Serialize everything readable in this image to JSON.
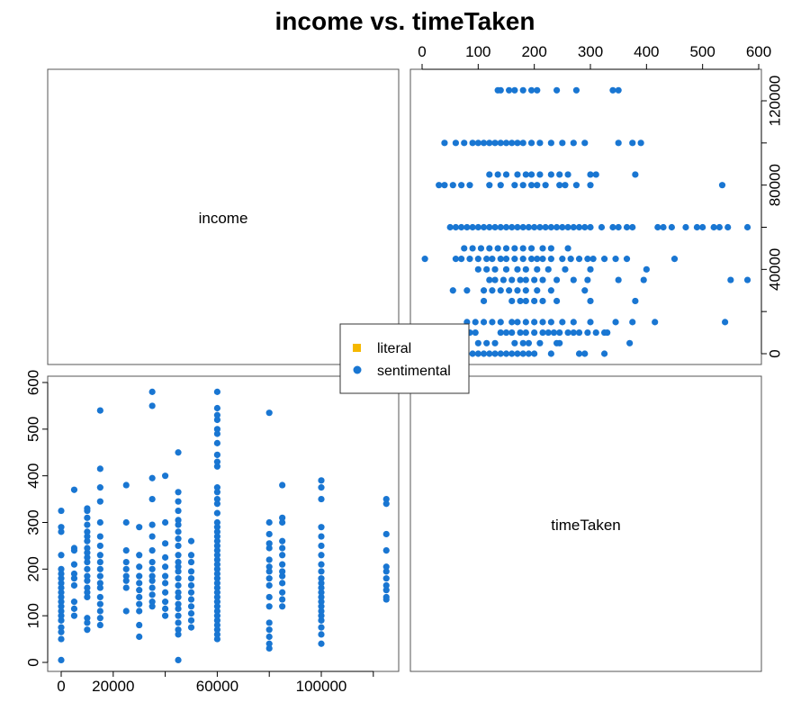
{
  "chart_data": {
    "type": "scatter",
    "title": "income vs. timeTaken",
    "variables": [
      "income",
      "timeTaken"
    ],
    "legend": {
      "placement": "center",
      "entries": [
        {
          "label": "literal",
          "color": "#F5B800",
          "shape": "square"
        },
        {
          "label": "sentimental",
          "color": "#1976D2",
          "shape": "circle"
        }
      ]
    },
    "income_axis": {
      "ticks": [
        0,
        20000,
        60000,
        100000
      ],
      "tick_labels": [
        "0",
        "20000",
        "60000",
        "100000"
      ],
      "range": [
        -2000,
        128000
      ]
    },
    "timeTaken_axis": {
      "ticks": [
        0,
        100,
        200,
        300,
        400,
        500,
        600
      ],
      "tick_labels": [
        "0",
        "100",
        "200",
        "300",
        "400",
        "500",
        "600"
      ],
      "range": [
        0,
        600
      ]
    },
    "income_ticks_right": {
      "ticks": [
        0,
        40000,
        80000,
        120000
      ],
      "tick_labels": [
        "0",
        "40000",
        "80000",
        "120000"
      ]
    },
    "timeTaken_ticks_left": {
      "ticks": [
        0,
        100,
        200,
        300,
        400,
        500,
        600
      ],
      "tick_labels": [
        "0",
        "100",
        "200",
        "300",
        "400",
        "500",
        "600"
      ]
    },
    "series": [
      {
        "name": "literal",
        "points": []
      },
      {
        "name": "sentimental",
        "points": [
          [
            0,
            5
          ],
          [
            0,
            50
          ],
          [
            0,
            65
          ],
          [
            0,
            75
          ],
          [
            0,
            90
          ],
          [
            0,
            100
          ],
          [
            0,
            110
          ],
          [
            0,
            120
          ],
          [
            0,
            130
          ],
          [
            0,
            140
          ],
          [
            0,
            150
          ],
          [
            0,
            160
          ],
          [
            0,
            170
          ],
          [
            0,
            180
          ],
          [
            0,
            190
          ],
          [
            0,
            200
          ],
          [
            0,
            230
          ],
          [
            0,
            280
          ],
          [
            0,
            290
          ],
          [
            0,
            325
          ],
          [
            5000,
            100
          ],
          [
            5000,
            115
          ],
          [
            5000,
            130
          ],
          [
            5000,
            165
          ],
          [
            5000,
            180
          ],
          [
            5000,
            190
          ],
          [
            5000,
            210
          ],
          [
            5000,
            240
          ],
          [
            5000,
            245
          ],
          [
            5000,
            370
          ],
          [
            10000,
            70
          ],
          [
            10000,
            85
          ],
          [
            10000,
            95
          ],
          [
            10000,
            140
          ],
          [
            10000,
            150
          ],
          [
            10000,
            160
          ],
          [
            10000,
            175
          ],
          [
            10000,
            185
          ],
          [
            10000,
            200
          ],
          [
            10000,
            215
          ],
          [
            10000,
            225
          ],
          [
            10000,
            235
          ],
          [
            10000,
            245
          ],
          [
            10000,
            260
          ],
          [
            10000,
            270
          ],
          [
            10000,
            280
          ],
          [
            10000,
            295
          ],
          [
            10000,
            310
          ],
          [
            10000,
            325
          ],
          [
            10000,
            330
          ],
          [
            15000,
            80
          ],
          [
            15000,
            95
          ],
          [
            15000,
            110
          ],
          [
            15000,
            125
          ],
          [
            15000,
            140
          ],
          [
            15000,
            160
          ],
          [
            15000,
            170
          ],
          [
            15000,
            185
          ],
          [
            15000,
            200
          ],
          [
            15000,
            215
          ],
          [
            15000,
            230
          ],
          [
            15000,
            250
          ],
          [
            15000,
            270
          ],
          [
            15000,
            300
          ],
          [
            15000,
            345
          ],
          [
            15000,
            375
          ],
          [
            15000,
            415
          ],
          [
            15000,
            540
          ],
          [
            25000,
            110
          ],
          [
            25000,
            160
          ],
          [
            25000,
            175
          ],
          [
            25000,
            185
          ],
          [
            25000,
            200
          ],
          [
            25000,
            215
          ],
          [
            25000,
            240
          ],
          [
            25000,
            300
          ],
          [
            25000,
            380
          ],
          [
            30000,
            55
          ],
          [
            30000,
            80
          ],
          [
            30000,
            110
          ],
          [
            30000,
            125
          ],
          [
            30000,
            140
          ],
          [
            30000,
            155
          ],
          [
            30000,
            170
          ],
          [
            30000,
            185
          ],
          [
            30000,
            205
          ],
          [
            30000,
            230
          ],
          [
            30000,
            290
          ],
          [
            35000,
            120
          ],
          [
            35000,
            130
          ],
          [
            35000,
            145
          ],
          [
            35000,
            160
          ],
          [
            35000,
            175
          ],
          [
            35000,
            185
          ],
          [
            35000,
            200
          ],
          [
            35000,
            215
          ],
          [
            35000,
            240
          ],
          [
            35000,
            270
          ],
          [
            35000,
            295
          ],
          [
            35000,
            350
          ],
          [
            35000,
            395
          ],
          [
            35000,
            550
          ],
          [
            35000,
            580
          ],
          [
            40000,
            100
          ],
          [
            40000,
            115
          ],
          [
            40000,
            130
          ],
          [
            40000,
            150
          ],
          [
            40000,
            170
          ],
          [
            40000,
            185
          ],
          [
            40000,
            205
          ],
          [
            40000,
            225
          ],
          [
            40000,
            255
          ],
          [
            40000,
            300
          ],
          [
            40000,
            400
          ],
          [
            45000,
            5
          ],
          [
            45000,
            60
          ],
          [
            45000,
            70
          ],
          [
            45000,
            85
          ],
          [
            45000,
            100
          ],
          [
            45000,
            115
          ],
          [
            45000,
            125
          ],
          [
            45000,
            140
          ],
          [
            45000,
            150
          ],
          [
            45000,
            165
          ],
          [
            45000,
            180
          ],
          [
            45000,
            195
          ],
          [
            45000,
            205
          ],
          [
            45000,
            215
          ],
          [
            45000,
            230
          ],
          [
            45000,
            250
          ],
          [
            45000,
            265
          ],
          [
            45000,
            280
          ],
          [
            45000,
            295
          ],
          [
            45000,
            305
          ],
          [
            45000,
            325
          ],
          [
            45000,
            345
          ],
          [
            45000,
            365
          ],
          [
            45000,
            450
          ],
          [
            50000,
            75
          ],
          [
            50000,
            90
          ],
          [
            50000,
            105
          ],
          [
            50000,
            120
          ],
          [
            50000,
            135
          ],
          [
            50000,
            150
          ],
          [
            50000,
            165
          ],
          [
            50000,
            180
          ],
          [
            50000,
            195
          ],
          [
            50000,
            215
          ],
          [
            50000,
            230
          ],
          [
            50000,
            260
          ],
          [
            60000,
            50
          ],
          [
            60000,
            60
          ],
          [
            60000,
            70
          ],
          [
            60000,
            80
          ],
          [
            60000,
            90
          ],
          [
            60000,
            100
          ],
          [
            60000,
            110
          ],
          [
            60000,
            120
          ],
          [
            60000,
            130
          ],
          [
            60000,
            140
          ],
          [
            60000,
            150
          ],
          [
            60000,
            160
          ],
          [
            60000,
            170
          ],
          [
            60000,
            180
          ],
          [
            60000,
            190
          ],
          [
            60000,
            200
          ],
          [
            60000,
            210
          ],
          [
            60000,
            220
          ],
          [
            60000,
            230
          ],
          [
            60000,
            240
          ],
          [
            60000,
            250
          ],
          [
            60000,
            260
          ],
          [
            60000,
            270
          ],
          [
            60000,
            280
          ],
          [
            60000,
            290
          ],
          [
            60000,
            300
          ],
          [
            60000,
            320
          ],
          [
            60000,
            340
          ],
          [
            60000,
            350
          ],
          [
            60000,
            365
          ],
          [
            60000,
            375
          ],
          [
            60000,
            420
          ],
          [
            60000,
            430
          ],
          [
            60000,
            445
          ],
          [
            60000,
            470
          ],
          [
            60000,
            490
          ],
          [
            60000,
            500
          ],
          [
            60000,
            520
          ],
          [
            60000,
            530
          ],
          [
            60000,
            545
          ],
          [
            60000,
            580
          ],
          [
            80000,
            30
          ],
          [
            80000,
            40
          ],
          [
            80000,
            55
          ],
          [
            80000,
            70
          ],
          [
            80000,
            85
          ],
          [
            80000,
            120
          ],
          [
            80000,
            140
          ],
          [
            80000,
            165
          ],
          [
            80000,
            180
          ],
          [
            80000,
            195
          ],
          [
            80000,
            205
          ],
          [
            80000,
            220
          ],
          [
            80000,
            245
          ],
          [
            80000,
            255
          ],
          [
            80000,
            275
          ],
          [
            80000,
            300
          ],
          [
            80000,
            535
          ],
          [
            85000,
            120
          ],
          [
            85000,
            135
          ],
          [
            85000,
            150
          ],
          [
            85000,
            170
          ],
          [
            85000,
            185
          ],
          [
            85000,
            195
          ],
          [
            85000,
            210
          ],
          [
            85000,
            230
          ],
          [
            85000,
            245
          ],
          [
            85000,
            260
          ],
          [
            85000,
            300
          ],
          [
            85000,
            310
          ],
          [
            85000,
            380
          ],
          [
            100000,
            40
          ],
          [
            100000,
            60
          ],
          [
            100000,
            75
          ],
          [
            100000,
            90
          ],
          [
            100000,
            100
          ],
          [
            100000,
            110
          ],
          [
            100000,
            120
          ],
          [
            100000,
            130
          ],
          [
            100000,
            140
          ],
          [
            100000,
            150
          ],
          [
            100000,
            160
          ],
          [
            100000,
            170
          ],
          [
            100000,
            180
          ],
          [
            100000,
            195
          ],
          [
            100000,
            210
          ],
          [
            100000,
            230
          ],
          [
            100000,
            250
          ],
          [
            100000,
            270
          ],
          [
            100000,
            290
          ],
          [
            100000,
            350
          ],
          [
            100000,
            375
          ],
          [
            100000,
            390
          ],
          [
            125000,
            135
          ],
          [
            125000,
            140
          ],
          [
            125000,
            155
          ],
          [
            125000,
            165
          ],
          [
            125000,
            180
          ],
          [
            125000,
            195
          ],
          [
            125000,
            205
          ],
          [
            125000,
            240
          ],
          [
            125000,
            275
          ],
          [
            125000,
            340
          ],
          [
            125000,
            350
          ]
        ]
      }
    ]
  }
}
